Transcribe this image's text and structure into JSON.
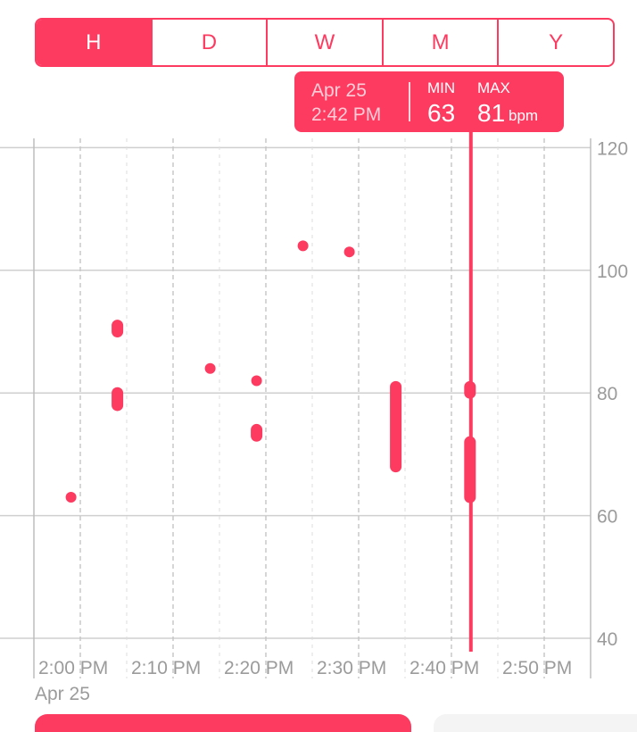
{
  "segments": {
    "items": [
      {
        "label": "H",
        "active": true
      },
      {
        "label": "D",
        "active": false
      },
      {
        "label": "W",
        "active": false
      },
      {
        "label": "M",
        "active": false
      },
      {
        "label": "Y",
        "active": false
      }
    ]
  },
  "callout": {
    "date": "Apr 25",
    "time": "2:42 PM",
    "min_label": "MIN",
    "max_label": "MAX",
    "min_value": "63",
    "max_value": "81",
    "unit": "bpm"
  },
  "footer": {
    "date": "Apr 25"
  },
  "colors": {
    "accent": "#fd3a60",
    "grid": "#cfcfcf",
    "axis_text": "#9b9b9b"
  },
  "chart_data": {
    "type": "scatter",
    "title": "",
    "xlabel": "",
    "ylabel": "",
    "x_ticks": [
      "2:00 PM",
      "2:10 PM",
      "2:20 PM",
      "2:30 PM",
      "2:40 PM",
      "2:50 PM"
    ],
    "y_ticks": [
      40,
      60,
      80,
      100,
      120
    ],
    "ylim": [
      40,
      120
    ],
    "xlim_minutes": [
      "1:55 PM",
      "2:56 PM"
    ],
    "grid": true,
    "selected_time": "2:42 PM",
    "points": [
      {
        "time": "1:59 PM",
        "min": 63,
        "max": 63
      },
      {
        "time": "2:04 PM",
        "min": 90,
        "max": 91
      },
      {
        "time": "2:04 PM",
        "min": 78,
        "max": 80
      },
      {
        "time": "2:14 PM",
        "min": 84,
        "max": 84
      },
      {
        "time": "2:19 PM",
        "min": 82,
        "max": 82
      },
      {
        "time": "2:19 PM",
        "min": 73,
        "max": 74
      },
      {
        "time": "2:24 PM",
        "min": 104,
        "max": 104
      },
      {
        "time": "2:29 PM",
        "min": 103,
        "max": 103
      },
      {
        "time": "2:34 PM",
        "min": 68,
        "max": 81
      },
      {
        "time": "2:42 PM",
        "min": 80,
        "max": 81
      },
      {
        "time": "2:42 PM",
        "min": 63,
        "max": 72
      }
    ]
  }
}
